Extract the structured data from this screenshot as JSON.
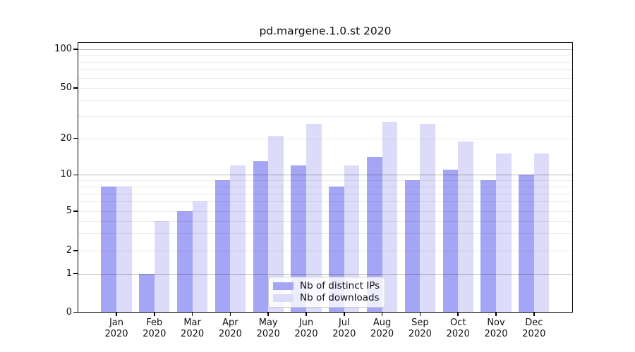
{
  "chart_data": {
    "type": "bar",
    "title": "pd.margene.1.0.st 2020",
    "categories": [
      {
        "month": "Jan",
        "year": "2020"
      },
      {
        "month": "Feb",
        "year": "2020"
      },
      {
        "month": "Mar",
        "year": "2020"
      },
      {
        "month": "Apr",
        "year": "2020"
      },
      {
        "month": "May",
        "year": "2020"
      },
      {
        "month": "Jun",
        "year": "2020"
      },
      {
        "month": "Jul",
        "year": "2020"
      },
      {
        "month": "Aug",
        "year": "2020"
      },
      {
        "month": "Sep",
        "year": "2020"
      },
      {
        "month": "Oct",
        "year": "2020"
      },
      {
        "month": "Nov",
        "year": "2020"
      },
      {
        "month": "Dec",
        "year": "2020"
      }
    ],
    "series": [
      {
        "name": "Nb of distinct IPs",
        "color": "#a5a5f5",
        "values": [
          8,
          1,
          5,
          9,
          13,
          12,
          8,
          14,
          9,
          11,
          9,
          10
        ]
      },
      {
        "name": "Nb of downloads",
        "color": "#dcdcfa",
        "values": [
          8,
          4,
          6,
          12,
          21,
          26,
          12,
          27,
          26,
          19,
          15,
          15
        ]
      }
    ],
    "xlabel": "",
    "ylabel": "",
    "y_axis": {
      "tick_values": [
        0,
        1,
        2,
        5,
        10,
        20,
        50,
        100
      ],
      "tick_labels": [
        "0",
        "1",
        "2",
        "5",
        "10",
        "20",
        "50",
        "100"
      ],
      "scale": "log-like (linear 0-1, logarithmic above)",
      "range": [
        0,
        100
      ]
    },
    "grid": {
      "on": true,
      "minor_values": [
        2,
        3,
        4,
        5,
        6,
        7,
        8,
        9,
        20,
        30,
        40,
        50,
        60,
        70,
        80,
        90
      ],
      "major_values": [
        1,
        10,
        100
      ]
    },
    "legend": {
      "position": "lower center"
    }
  }
}
